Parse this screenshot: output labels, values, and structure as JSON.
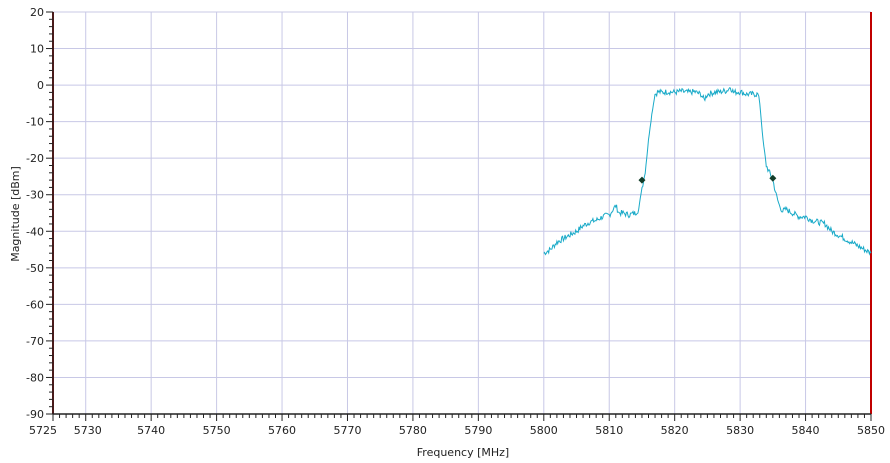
{
  "chart_data": {
    "type": "line",
    "title": "",
    "xlabel": "Frequency [MHz]",
    "ylabel": "Magnitude [dBm]",
    "xlim": [
      5725,
      5850
    ],
    "ylim": [
      -90,
      20
    ],
    "grid": true,
    "x_ticks": [
      5725,
      5730,
      5740,
      5750,
      5760,
      5770,
      5780,
      5790,
      5800,
      5810,
      5820,
      5830,
      5840,
      5850
    ],
    "x_tick_labels": [
      "5725",
      "5730",
      "5740",
      "5750",
      "5760",
      "5770",
      "5780",
      "5790",
      "5800",
      "5810",
      "5820",
      "5830",
      "5840",
      "5850"
    ],
    "y_ticks": [
      20,
      10,
      0,
      -10,
      -20,
      -30,
      -40,
      -50,
      -60,
      -70,
      -80,
      -90
    ],
    "y_tick_labels": [
      "20",
      "10",
      "0",
      "-10",
      "-20",
      "-30",
      "-40",
      "-50",
      "-60",
      "-70",
      "-80",
      "-90"
    ],
    "band_edges": [
      5725,
      5850
    ],
    "colors": {
      "trace": "#19aac8",
      "grid": "#c8c8e6",
      "band_edge": "#c00000",
      "marker": "#123c28"
    },
    "series": [
      {
        "x": [
          5800,
          5801,
          5802,
          5803,
          5804,
          5805,
          5806,
          5807,
          5808,
          5809,
          5810,
          5811,
          5811.5,
          5812,
          5813,
          5814,
          5814.5,
          5815,
          5815.5,
          5816,
          5816.5,
          5817,
          5817.5,
          5818,
          5819,
          5820,
          5821,
          5822,
          5823,
          5824,
          5824.5,
          5825,
          5826,
          5827,
          5828,
          5828.5,
          5829,
          5830,
          5831,
          5832,
          5832.7,
          5833,
          5833.5,
          5834,
          5834.5,
          5835,
          5835.5,
          5836,
          5836.5,
          5837,
          5838,
          5839,
          5840,
          5841,
          5842,
          5843,
          5844,
          5845,
          5846,
          5847,
          5848,
          5849,
          5850
        ],
        "y": [
          -46,
          -45,
          -43,
          -42,
          -41,
          -40,
          -38.5,
          -37.5,
          -37,
          -36,
          -35.5,
          -33,
          -35,
          -35,
          -35.5,
          -35,
          -34,
          -28,
          -24,
          -15,
          -8,
          -2.5,
          -1.8,
          -2,
          -1.8,
          -2,
          -1.7,
          -2,
          -1.8,
          -2.5,
          -4,
          -2.5,
          -2,
          -1.8,
          -1.5,
          -0.5,
          -2,
          -1.8,
          -2.5,
          -2.5,
          -2.5,
          -5,
          -15,
          -22,
          -24,
          -26,
          -30,
          -33,
          -34.5,
          -34,
          -35,
          -36,
          -36,
          -37,
          -37.5,
          -38,
          -40,
          -41,
          -42,
          -43,
          -44,
          -45,
          -46
        ]
      }
    ],
    "markers": [
      {
        "x": 5815,
        "y": -26
      },
      {
        "x": 5835,
        "y": -25.5
      }
    ]
  }
}
